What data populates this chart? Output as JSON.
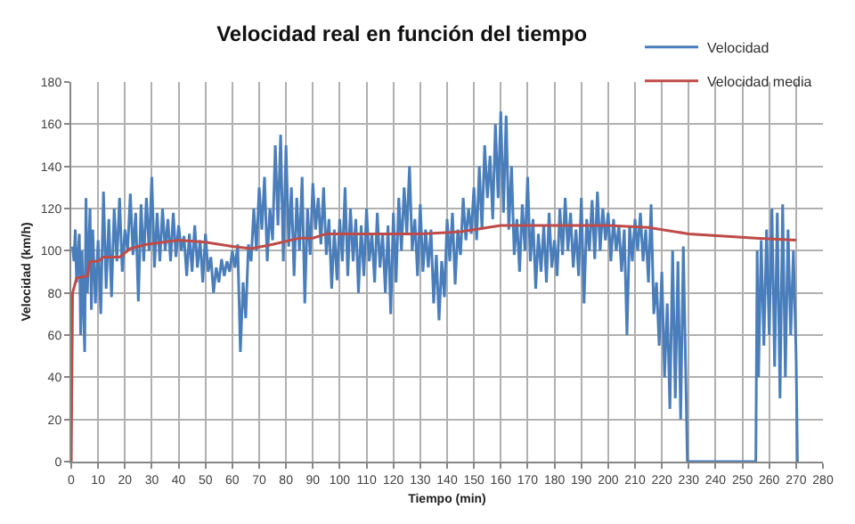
{
  "chart_data": {
    "type": "line",
    "title": "Velocidad real en función del tiempo",
    "xlabel": "Tiempo (min)",
    "ylabel": "Velocidad (km/h)",
    "xlim": [
      0,
      280
    ],
    "xticks": [
      0,
      10,
      20,
      30,
      40,
      50,
      60,
      70,
      80,
      90,
      100,
      110,
      120,
      130,
      140,
      150,
      160,
      170,
      180,
      190,
      200,
      210,
      220,
      230,
      240,
      250,
      260,
      270,
      280
    ],
    "ylim": [
      0,
      180
    ],
    "yticks": [
      0,
      20,
      40,
      60,
      80,
      100,
      120,
      140,
      160,
      180
    ],
    "grid": true,
    "legend": "top right",
    "marker": "none",
    "line_style": "solid",
    "series": [
      {
        "name": "Velocidad",
        "color": "#4a7ebb",
        "x": [
          0.5,
          1,
          1.5,
          2,
          3,
          3.5,
          4,
          5,
          5.5,
          6,
          7,
          7.5,
          8,
          9,
          10,
          11,
          12,
          13,
          14,
          15,
          16,
          17,
          18,
          19,
          20,
          21,
          22,
          23,
          24,
          25,
          26,
          27,
          28,
          29,
          30,
          31,
          32,
          33,
          34,
          35,
          36,
          37,
          38,
          39,
          40,
          41,
          42,
          43,
          44,
          45,
          46,
          47,
          48,
          49,
          50,
          51,
          52,
          53,
          54,
          55,
          56,
          57,
          58,
          59,
          60,
          61,
          62,
          63,
          64,
          65,
          66,
          67,
          68,
          69,
          70,
          71,
          72,
          73,
          74,
          75,
          76,
          77,
          78,
          79,
          80,
          81,
          82,
          83,
          84,
          85,
          86,
          87,
          88,
          89,
          90,
          91,
          92,
          93,
          94,
          95,
          96,
          97,
          98,
          99,
          100,
          101,
          102,
          103,
          104,
          105,
          106,
          107,
          108,
          109,
          110,
          111,
          112,
          113,
          114,
          115,
          116,
          117,
          118,
          119,
          120,
          121,
          122,
          123,
          124,
          125,
          126,
          127,
          128,
          129,
          130,
          131,
          132,
          133,
          134,
          135,
          136,
          137,
          138,
          139,
          140,
          141,
          142,
          143,
          144,
          145,
          146,
          147,
          148,
          149,
          150,
          151,
          152,
          153,
          154,
          155,
          156,
          157,
          158,
          159,
          160,
          161,
          162,
          163,
          164,
          165,
          166,
          167,
          168,
          169,
          170,
          171,
          172,
          173,
          174,
          175,
          176,
          177,
          178,
          179,
          180,
          181,
          182,
          183,
          184,
          185,
          186,
          187,
          188,
          189,
          190,
          191,
          192,
          193,
          194,
          195,
          196,
          197,
          198,
          199,
          200,
          201,
          202,
          203,
          204,
          205,
          206,
          207,
          208,
          209,
          210,
          211,
          212,
          213,
          214,
          215,
          216,
          217,
          218,
          219,
          220,
          221,
          222,
          223,
          224,
          225,
          226,
          227,
          228,
          229,
          229.5,
          255,
          255.5,
          256,
          257,
          258,
          259,
          260,
          261,
          262,
          263,
          264,
          265,
          266,
          267,
          268,
          269,
          270,
          270.5
        ],
        "values": [
          102,
          95,
          110,
          85,
          108,
          60,
          100,
          52,
          125,
          80,
          120,
          72,
          110,
          75,
          105,
          70,
          128,
          82,
          115,
          78,
          120,
          95,
          125,
          90,
          110,
          100,
          127,
          98,
          118,
          76,
          122,
          95,
          125,
          100,
          135,
          92,
          118,
          95,
          120,
          100,
          115,
          95,
          118,
          97,
          112,
          100,
          107,
          88,
          108,
          90,
          112,
          92,
          105,
          85,
          108,
          90,
          97,
          80,
          92,
          85,
          96,
          88,
          95,
          90,
          100,
          92,
          103,
          52,
          85,
          68,
          103,
          95,
          120,
          100,
          130,
          110,
          135,
          95,
          120,
          105,
          150,
          112,
          155,
          95,
          150,
          102,
          130,
          88,
          125,
          100,
          135,
          75,
          120,
          98,
          132,
          110,
          125,
          103,
          130,
          98,
          115,
          82,
          110,
          86,
          115,
          95,
          130,
          88,
          120,
          95,
          115,
          80,
          112,
          88,
          120,
          95,
          108,
          85,
          118,
          92,
          108,
          80,
          112,
          70,
          118,
          85,
          125,
          100,
          130,
          108,
          140,
          100,
          115,
          88,
          122,
          90,
          110,
          92,
          110,
          75,
          98,
          67,
          95,
          78,
          115,
          95,
          118,
          84,
          110,
          98,
          125,
          105,
          120,
          108,
          130,
          105,
          140,
          110,
          150,
          125,
          145,
          115,
          160,
          125,
          166,
          118,
          164,
          110,
          140,
          98,
          115,
          90,
          122,
          100,
          135,
          95,
          115,
          82,
          108,
          90,
          112,
          85,
          118,
          92,
          105,
          88,
          120,
          98,
          125,
          100,
          118,
          92,
          110,
          88,
          125,
          75,
          115,
          100,
          124,
          96,
          128,
          100,
          120,
          105,
          118,
          95,
          115,
          100,
          112,
          90,
          110,
          60,
          112,
          95,
          115,
          100,
          118,
          95,
          110,
          85,
          122,
          70,
          85,
          55,
          90,
          40,
          75,
          25,
          100,
          30,
          95,
          20,
          102,
          35,
          0,
          0,
          100,
          40,
          105,
          55,
          110,
          60,
          120,
          45,
          118,
          30,
          122,
          40,
          110,
          60,
          100,
          50,
          0
        ]
      },
      {
        "name": "Velocidad media",
        "color": "#be4b48",
        "x": [
          0,
          0.5,
          2,
          6,
          7,
          10,
          12,
          18,
          22,
          28,
          40,
          50,
          60,
          67,
          75,
          85,
          90,
          95,
          130,
          145,
          150,
          160,
          200,
          215,
          230,
          255,
          270
        ],
        "values": [
          0,
          80,
          87,
          88,
          95,
          95,
          97,
          97,
          101,
          103,
          105,
          104,
          102,
          101,
          103,
          106,
          106,
          108,
          108,
          109,
          110,
          112,
          112,
          111,
          108,
          106,
          105
        ]
      }
    ]
  }
}
